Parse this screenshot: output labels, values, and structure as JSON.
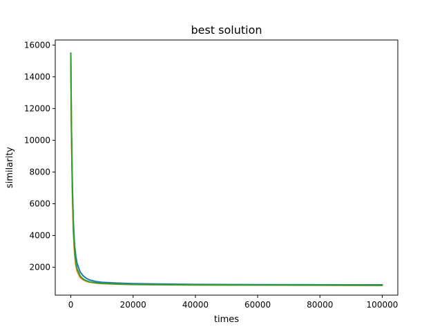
{
  "chart_data": {
    "type": "line",
    "title": "best solution",
    "xlabel": "times",
    "ylabel": "similarity",
    "xlim": [
      -5000,
      105000
    ],
    "ylim": [
      240,
      16320
    ],
    "xticks": [
      0,
      20000,
      40000,
      60000,
      80000,
      100000
    ],
    "xtick_labels": [
      "0",
      "20000",
      "40000",
      "60000",
      "80000",
      "100000"
    ],
    "yticks": [
      2000,
      4000,
      6000,
      8000,
      10000,
      12000,
      14000,
      16000
    ],
    "ytick_labels": [
      "2000",
      "4000",
      "6000",
      "8000",
      "10000",
      "12000",
      "14000",
      "16000"
    ],
    "grid": false,
    "series": [
      {
        "color": "#1f77b4",
        "x": [
          0,
          200,
          500,
          800,
          1200,
          1600,
          2000,
          3000,
          4000,
          5000,
          6000,
          8000,
          10000,
          15000,
          20000,
          30000,
          40000,
          60000,
          80000,
          100000
        ],
        "y": [
          15500,
          11000,
          7200,
          4900,
          3400,
          2700,
          2250,
          1700,
          1450,
          1300,
          1200,
          1100,
          1050,
          1000,
          970,
          940,
          920,
          900,
          895,
          890
        ]
      },
      {
        "color": "#ff7f0e",
        "x": [
          0,
          200,
          500,
          800,
          1200,
          1600,
          2000,
          3000,
          4000,
          5000,
          6000,
          8000,
          10000,
          15000,
          20000,
          30000,
          40000,
          60000,
          80000,
          100000
        ],
        "y": [
          15500,
          10500,
          6500,
          4200,
          2800,
          2100,
          1750,
          1350,
          1200,
          1110,
          1060,
          1000,
          970,
          930,
          910,
          890,
          880,
          870,
          860,
          850
        ]
      },
      {
        "color": "#2ca02c",
        "x": [
          0,
          200,
          500,
          800,
          1200,
          1600,
          2000,
          3000,
          4000,
          5000,
          6000,
          8000,
          10000,
          15000,
          20000,
          30000,
          40000,
          60000,
          80000,
          100000
        ],
        "y": [
          15500,
          10800,
          6900,
          4600,
          3100,
          2300,
          1900,
          1450,
          1250,
          1150,
          1080,
          1020,
          985,
          940,
          915,
          895,
          885,
          875,
          868,
          860
        ]
      }
    ]
  }
}
